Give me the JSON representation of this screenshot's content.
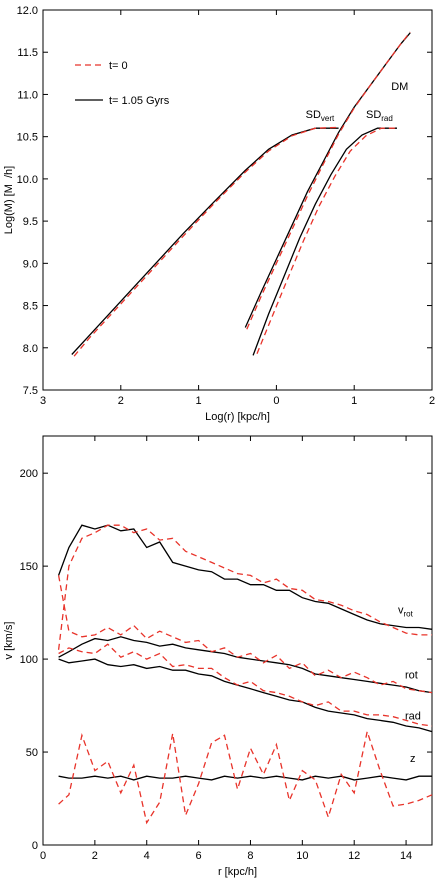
{
  "chart_data": [
    {
      "type": "line",
      "xlabel": "Log(r) [kpc/h]",
      "ylabel": "Log(M) [M  /h]",
      "xlim": [
        -3,
        2
      ],
      "ylim": [
        7.5,
        12.0
      ],
      "xticks": [
        {
          "value": -3,
          "label": "3"
        },
        {
          "value": -2,
          "label": "2"
        },
        {
          "value": -1,
          "label": "1"
        },
        0,
        1,
        2
      ],
      "yticks": [
        7.5,
        {
          "value": 8,
          "label": "8.0"
        },
        8.5,
        {
          "value": 9,
          "label": "9.0"
        },
        9.5,
        {
          "value": 10,
          "label": "10.0"
        },
        10.5,
        {
          "value": 11,
          "label": "11.0"
        },
        11.5,
        {
          "value": 12,
          "label": "12.0"
        }
      ],
      "legend": "upper left",
      "series": [
        {
          "name": "t= 0",
          "color": "#e8332a",
          "dash": true,
          "curves": [
            {
              "x": [
                -2.6,
                -2.4,
                -2.0,
                -1.6,
                -1.2,
                -0.8,
                -0.4,
                -0.1,
                0.2,
                0.5,
                0.8
              ],
              "values": [
                7.9,
                8.12,
                8.52,
                8.92,
                9.32,
                9.71,
                10.08,
                10.33,
                10.51,
                10.6,
                10.61
              ]
            },
            {
              "x": [
                -0.38,
                -0.2,
                0,
                0.2,
                0.4,
                0.6,
                0.8,
                1.0,
                1.2,
                1.4,
                1.6,
                1.72
              ],
              "values": [
                8.22,
                8.6,
                9.0,
                9.4,
                9.8,
                10.17,
                10.53,
                10.84,
                11.1,
                11.35,
                11.6,
                11.74
              ]
            },
            {
              "x": [
                -0.25,
                -0.05,
                0.15,
                0.35,
                0.55,
                0.75,
                0.95,
                1.15,
                1.35,
                1.55
              ],
              "values": [
                7.93,
                8.38,
                8.83,
                9.27,
                9.68,
                10.03,
                10.33,
                10.51,
                10.6,
                10.6
              ]
            }
          ]
        },
        {
          "name": "t= 1.05 Gyrs",
          "color": "#000000",
          "dash": false,
          "curves": [
            {
              "x": [
                -2.63,
                -2.4,
                -2.0,
                -1.6,
                -1.2,
                -0.8,
                -0.4,
                -0.1,
                0.2,
                0.5,
                0.8
              ],
              "values": [
                7.92,
                8.15,
                8.55,
                8.95,
                9.35,
                9.73,
                10.1,
                10.35,
                10.52,
                10.6,
                10.6
              ]
            },
            {
              "x": [
                -0.4,
                -0.2,
                0,
                0.2,
                0.4,
                0.6,
                0.8,
                1.0,
                1.2,
                1.4,
                1.6,
                1.72
              ],
              "values": [
                8.24,
                8.65,
                9.05,
                9.45,
                9.85,
                10.2,
                10.55,
                10.85,
                11.1,
                11.35,
                11.6,
                11.73
              ]
            },
            {
              "x": [
                -0.3,
                -0.1,
                0.1,
                0.3,
                0.5,
                0.7,
                0.9,
                1.1,
                1.3,
                1.55
              ],
              "values": [
                7.91,
                8.4,
                8.85,
                9.3,
                9.7,
                10.05,
                10.35,
                10.52,
                10.6,
                10.6
              ]
            }
          ]
        }
      ],
      "annotations": [
        {
          "text": "SD",
          "sub": "vert"
        },
        {
          "text": "DM"
        },
        {
          "text": "SD",
          "sub": "rad"
        }
      ]
    },
    {
      "type": "line",
      "xlabel": "r [kpc/h]",
      "ylabel": "v [km/s]",
      "xlim": [
        0,
        15
      ],
      "ylim": [
        0,
        220
      ],
      "xticks": [
        0,
        2,
        4,
        6,
        8,
        10,
        12,
        14
      ],
      "yticks": [
        0,
        50,
        100,
        150,
        200
      ],
      "x": [
        0.6,
        1,
        1.5,
        2,
        2.5,
        3,
        3.5,
        4,
        4.5,
        5,
        5.5,
        6,
        6.5,
        7,
        7.5,
        8,
        8.5,
        9,
        9.5,
        10,
        10.5,
        11,
        11.5,
        12,
        12.5,
        13,
        13.5,
        14,
        14.5,
        15
      ],
      "series": [
        {
          "color": "#000000",
          "dash": false,
          "values": [
            145,
            160,
            172,
            170,
            172,
            169,
            170,
            160,
            163,
            152,
            150,
            148,
            147,
            143,
            143,
            140,
            140,
            137,
            137,
            133,
            131,
            130,
            127,
            124,
            121,
            119,
            118,
            117,
            117,
            116
          ]
        },
        {
          "color": "#000000",
          "dash": false,
          "values": [
            101,
            104,
            108,
            111,
            110,
            112,
            110,
            109,
            107,
            108,
            106,
            105,
            104,
            103,
            101,
            100,
            99,
            98,
            97,
            95,
            92,
            91,
            90,
            89,
            88,
            87,
            86,
            85,
            83,
            82
          ]
        },
        {
          "color": "#000000",
          "dash": false,
          "values": [
            100,
            98,
            99,
            100,
            97,
            96,
            97,
            95,
            96,
            94,
            94,
            92,
            91,
            88,
            86,
            84,
            82,
            80,
            78,
            77,
            74,
            72,
            71,
            70,
            68,
            67,
            66,
            64,
            63,
            61
          ]
        },
        {
          "color": "#000000",
          "dash": false,
          "values": [
            37,
            36,
            36,
            37,
            36,
            37,
            35,
            37,
            36,
            36,
            37,
            36,
            35,
            37,
            36,
            37,
            36,
            37,
            36,
            35,
            37,
            36,
            37,
            35,
            36,
            37,
            36,
            35,
            37,
            37
          ]
        },
        {
          "color": "#e8332a",
          "dash": true,
          "values": [
            105,
            150,
            165,
            168,
            172,
            172,
            168,
            170,
            164,
            165,
            158,
            155,
            152,
            149,
            146,
            145,
            141,
            143,
            138,
            137,
            132,
            131,
            129,
            126,
            124,
            120,
            117,
            114,
            113,
            113
          ]
        },
        {
          "color": "#e8332a",
          "dash": true,
          "values": [
            145,
            115,
            112,
            113,
            117,
            113,
            118,
            111,
            115,
            112,
            109,
            110,
            104,
            106,
            101,
            103,
            98,
            102,
            95,
            98,
            91,
            94,
            90,
            93,
            90,
            86,
            88,
            84,
            83,
            82
          ]
        },
        {
          "color": "#e8332a",
          "dash": true,
          "values": [
            103,
            106,
            104,
            103,
            108,
            101,
            104,
            100,
            103,
            96,
            97,
            95,
            95,
            90,
            86,
            88,
            83,
            82,
            80,
            77,
            75,
            77,
            72,
            72,
            70,
            70,
            69,
            67,
            65,
            64
          ]
        },
        {
          "color": "#e8332a",
          "dash": true,
          "values": [
            22,
            27,
            59,
            40,
            45,
            28,
            43,
            12,
            23,
            60,
            16,
            33,
            55,
            59,
            30,
            52,
            38,
            54,
            24,
            40,
            35,
            15,
            38,
            28,
            61,
            40,
            21,
            22,
            24,
            27
          ]
        }
      ],
      "annotations": [
        {
          "text": "v",
          "sub": "rot"
        },
        {
          "text": "rot"
        },
        {
          "text": "rad"
        },
        {
          "text": "z"
        }
      ]
    }
  ]
}
